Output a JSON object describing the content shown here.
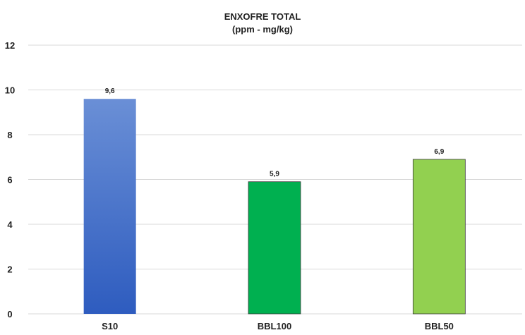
{
  "chart_data": {
    "type": "bar",
    "title": "ENXOFRE TOTAL",
    "subtitle": "(ppm - mg/kg)",
    "categories": [
      "S10",
      "BBL100",
      "BBL50"
    ],
    "values": [
      9.6,
      5.9,
      6.9
    ],
    "data_labels": [
      "9,6",
      "5,9",
      "6,9"
    ],
    "ylim": [
      0,
      12
    ],
    "yticks": [
      0,
      2,
      4,
      6,
      8,
      10,
      12
    ],
    "grid": true,
    "legend": "none",
    "colors": {
      "S10": {
        "top": "#6a8fd6",
        "bottom": "#2e5cbf"
      },
      "BBL100": {
        "top": "#00b050",
        "bottom": "#00b050"
      },
      "BBL50": {
        "top": "#92d050",
        "bottom": "#92d050"
      }
    }
  }
}
